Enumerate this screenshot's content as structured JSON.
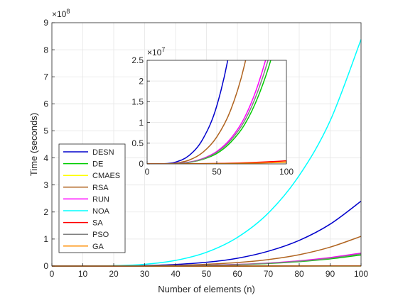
{
  "chart_data": {
    "type": "line",
    "xlabel": "Number of elements (n)",
    "ylabel": "Time (seconds)",
    "xlim": [
      0,
      100
    ],
    "ylim": [
      0,
      900000000
    ],
    "y_exponent_label": "×10^8",
    "grid": true,
    "legend_placement": "bottom-left",
    "x_ticks": [
      0,
      10,
      20,
      30,
      40,
      50,
      60,
      70,
      80,
      90,
      100
    ],
    "x_tick_labels": [
      "0",
      "10",
      "20",
      "30",
      "40",
      "50",
      "60",
      "70",
      "80",
      "90",
      "100"
    ],
    "y_ticks": [
      0,
      100000000,
      200000000,
      300000000,
      400000000,
      500000000,
      600000000,
      700000000,
      800000000,
      900000000
    ],
    "y_tick_labels": [
      "0",
      "1",
      "2",
      "3",
      "4",
      "5",
      "6",
      "7",
      "8",
      "9"
    ],
    "x": [
      0,
      10,
      20,
      30,
      40,
      50,
      60,
      70,
      80,
      90,
      100
    ],
    "series": [
      {
        "name": "DESN",
        "color": "#0000cc",
        "values": [
          0,
          20000,
          400000,
          2000000,
          6000000,
          14000000,
          29000000,
          55000000,
          95000000,
          155000000,
          240000000
        ]
      },
      {
        "name": "DE",
        "color": "#00cc00",
        "values": [
          0,
          4000,
          70000,
          350000,
          1100000,
          2500000,
          5200000,
          9500000,
          16500000,
          26500000,
          41000000
        ]
      },
      {
        "name": "CMAES",
        "color": "#ffff00",
        "values": [
          0,
          1000,
          5000,
          15000,
          30000,
          60000,
          100000,
          160000,
          240000,
          340000,
          450000
        ]
      },
      {
        "name": "RSA",
        "color": "#b06420",
        "values": [
          0,
          10000,
          180000,
          900000,
          2800000,
          6500000,
          13000000,
          24000000,
          42000000,
          70000000,
          110000000
        ]
      },
      {
        "name": "RUN",
        "color": "#ff00ff",
        "values": [
          0,
          5000,
          90000,
          420000,
          1300000,
          3000000,
          6100000,
          11200000,
          19500000,
          31500000,
          48000000
        ]
      },
      {
        "name": "NOA",
        "color": "#00ffff",
        "values": [
          0,
          80000,
          1300000,
          6600000,
          21000000,
          51000000,
          106000000,
          196000000,
          335000000,
          537000000,
          838000000
        ]
      },
      {
        "name": "SA",
        "color": "#ff0000",
        "values": [
          0,
          1500,
          8000,
          25000,
          55000,
          100000,
          170000,
          270000,
          400000,
          560000,
          750000
        ]
      },
      {
        "name": "PSO",
        "color": "#808080",
        "values": [
          0,
          4500,
          80000,
          390000,
          1200000,
          2800000,
          5700000,
          10400000,
          18000000,
          29000000,
          45000000
        ]
      },
      {
        "name": "GA",
        "color": "#ff8c00",
        "values": [
          0,
          1000,
          4000,
          12000,
          25000,
          50000,
          85000,
          140000,
          210000,
          300000,
          400000
        ]
      }
    ],
    "inset": {
      "xlim": [
        0,
        100
      ],
      "ylim": [
        0,
        25000000
      ],
      "y_exponent_label": "×10^7",
      "x_ticks": [
        0,
        50,
        100
      ],
      "x_tick_labels": [
        "0",
        "50",
        "100"
      ],
      "y_ticks": [
        0,
        5000000,
        10000000,
        15000000,
        20000000,
        25000000
      ],
      "y_tick_labels": [
        "0",
        "0.5",
        "1",
        "1.5",
        "2",
        "2.5"
      ],
      "series_shown": [
        "DESN",
        "DE",
        "CMAES",
        "RSA",
        "RUN",
        "SA",
        "PSO",
        "GA"
      ]
    }
  }
}
